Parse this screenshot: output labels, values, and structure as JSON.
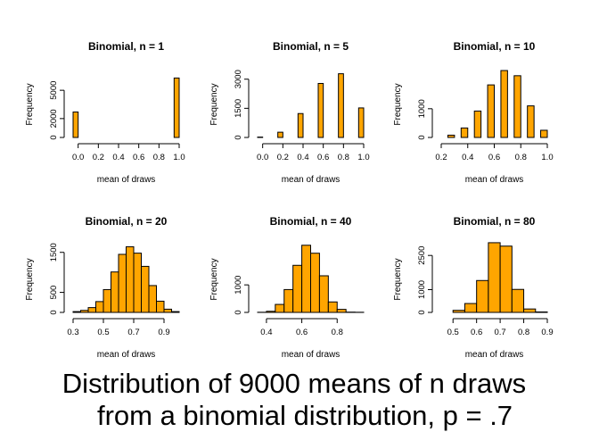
{
  "caption": {
    "line1": "Distribution of 9000 means of n draws",
    "line2": "from a binomial distribution, p = .7"
  },
  "style": {
    "bar_fill": "#FFA500",
    "bar_stroke": "#000000",
    "text_color": "#000000"
  },
  "chart_data": [
    {
      "type": "bar",
      "title": "Binomial, n = 1",
      "xlabel": "mean of draws",
      "ylabel": "Frequency",
      "xlim": [
        -0.05,
        1.0
      ],
      "ylim": [
        0,
        7000
      ],
      "xticks": [
        0.0,
        0.2,
        0.4,
        0.6,
        0.8,
        1.0
      ],
      "xtick_labels": [
        "0.0",
        "0.2",
        "0.4",
        "0.6",
        "0.8",
        "1.0"
      ],
      "yticks": [
        0,
        2000,
        5000
      ],
      "ytick_labels": [
        "0",
        "2000",
        "5000"
      ],
      "bin_width": 0.05,
      "bin_start": -0.05,
      "values": [
        2700,
        0,
        0,
        0,
        0,
        0,
        0,
        0,
        0,
        0,
        0,
        0,
        0,
        0,
        0,
        0,
        0,
        0,
        0,
        0,
        6300
      ]
    },
    {
      "type": "bar",
      "title": "Binomial, n = 5",
      "xlabel": "mean of draws",
      "ylabel": "Frequency",
      "xlim": [
        -0.05,
        1.0
      ],
      "ylim": [
        0,
        3400
      ],
      "xticks": [
        0.0,
        0.2,
        0.4,
        0.6,
        0.8,
        1.0
      ],
      "xtick_labels": [
        "0.0",
        "0.2",
        "0.4",
        "0.6",
        "0.8",
        "1.0"
      ],
      "yticks": [
        0,
        1500,
        3000
      ],
      "ytick_labels": [
        "0",
        "1500",
        "3000"
      ],
      "bin_width": 0.05,
      "bin_start": -0.05,
      "values": [
        20,
        0,
        0,
        0,
        270,
        0,
        0,
        0,
        1230,
        0,
        0,
        0,
        2780,
        0,
        0,
        0,
        3280,
        0,
        0,
        0,
        1520
      ]
    },
    {
      "type": "bar",
      "title": "Binomial, n = 10",
      "xlabel": "mean of draws",
      "ylabel": "Frequency",
      "xlim": [
        0.2,
        1.0
      ],
      "ylim": [
        0,
        2300
      ],
      "xticks": [
        0.2,
        0.4,
        0.6,
        0.8,
        1.0
      ],
      "xtick_labels": [
        "0.2",
        "0.4",
        "0.6",
        "0.8",
        "1.0"
      ],
      "yticks": [
        0,
        1000
      ],
      "ytick_labels": [
        "0",
        "1000"
      ],
      "bin_width": 0.05,
      "bin_start": 0.2,
      "values": [
        0,
        80,
        0,
        330,
        0,
        920,
        0,
        1830,
        0,
        2330,
        0,
        2150,
        0,
        1100,
        0,
        250
      ]
    },
    {
      "type": "bar",
      "title": "Binomial, n = 20",
      "xlabel": "mean of draws",
      "ylabel": "Frequency",
      "xlim": [
        0.3,
        1.0
      ],
      "ylim": [
        0,
        1650
      ],
      "xticks": [
        0.3,
        0.5,
        0.7,
        0.9
      ],
      "xtick_labels": [
        "0.3",
        "0.5",
        "0.7",
        "0.9"
      ],
      "yticks": [
        0,
        500,
        1500
      ],
      "ytick_labels": [
        "0",
        "500",
        "1500"
      ],
      "bin_width": 0.05,
      "bin_start": 0.3,
      "values": [
        20,
        50,
        120,
        270,
        570,
        1010,
        1450,
        1640,
        1480,
        1150,
        670,
        280,
        80,
        20
      ]
    },
    {
      "type": "bar",
      "title": "Binomial, n = 40",
      "xlabel": "mean of draws",
      "ylabel": "Frequency",
      "xlim": [
        0.35,
        0.95
      ],
      "ylim": [
        0,
        2400
      ],
      "xticks": [
        0.4,
        0.6,
        0.8
      ],
      "xtick_labels": [
        "0.4",
        "0.6",
        "0.8"
      ],
      "yticks": [
        0,
        1000
      ],
      "ytick_labels": [
        "0",
        "1000"
      ],
      "bin_width": 0.05,
      "bin_start": 0.35,
      "values": [
        5,
        40,
        290,
        830,
        1710,
        2440,
        2150,
        1330,
        380,
        110,
        10,
        5
      ]
    },
    {
      "type": "bar",
      "title": "Binomial, n = 80",
      "xlabel": "mean of draws",
      "ylabel": "Frequency",
      "xlim": [
        0.45,
        0.9
      ],
      "ylim": [
        0,
        2900
      ],
      "xticks": [
        0.5,
        0.6,
        0.7,
        0.8,
        0.9
      ],
      "xtick_labels": [
        "0.5",
        "0.6",
        "0.7",
        "0.8",
        "0.9"
      ],
      "yticks": [
        0,
        1000,
        2500
      ],
      "ytick_labels": [
        "0",
        "1000",
        "2500"
      ],
      "bin_width": 0.05,
      "bin_start": 0.5,
      "values": [
        90,
        390,
        1400,
        3060,
        2910,
        1010,
        150,
        20
      ]
    }
  ]
}
